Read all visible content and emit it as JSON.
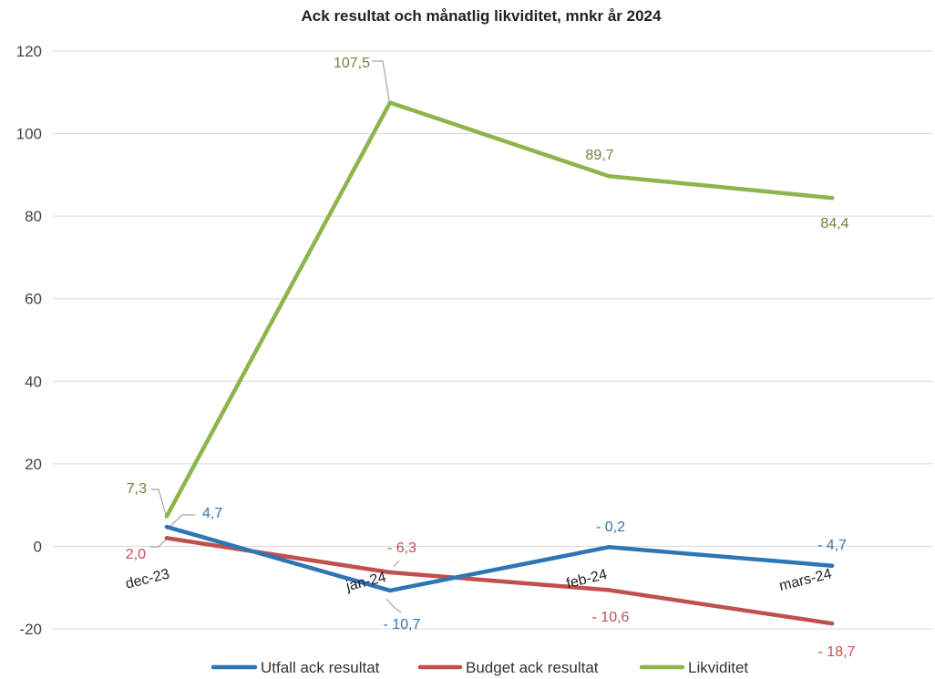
{
  "chart_data": {
    "type": "line",
    "title": "Ack resultat och månatlig likviditet, mnkr år 2024",
    "categories": [
      "dec-23",
      "jan-24",
      "feb-24",
      "mars-24"
    ],
    "ylim": [
      -20,
      120
    ],
    "yticks": [
      -20,
      0,
      20,
      40,
      60,
      80,
      100,
      120
    ],
    "ytick_labels": [
      "-20",
      "0",
      "20",
      "40",
      "60",
      "80",
      "100",
      "120"
    ],
    "grid": true,
    "legend_position": "bottom",
    "series": [
      {
        "name": "Utfall ack resultat",
        "color": "#2e75b6",
        "values": [
          4.7,
          -10.7,
          -0.2,
          -4.7
        ],
        "labels": [
          "4,7",
          "- 10,7",
          "- 0,2",
          "- 4,7"
        ]
      },
      {
        "name": "Budget ack resultat",
        "color": "#c0504d",
        "values": [
          2.0,
          -6.3,
          -10.6,
          -18.7
        ],
        "labels": [
          "2,0",
          "- 6,3",
          "- 10,6",
          "- 18,7"
        ]
      },
      {
        "name": "Likviditet",
        "color": "#8db54c",
        "label_color": "#76803a",
        "values": [
          7.3,
          107.5,
          89.7,
          84.4
        ],
        "labels": [
          "7,3",
          "107,5",
          "89,7",
          "84,4"
        ]
      }
    ]
  }
}
